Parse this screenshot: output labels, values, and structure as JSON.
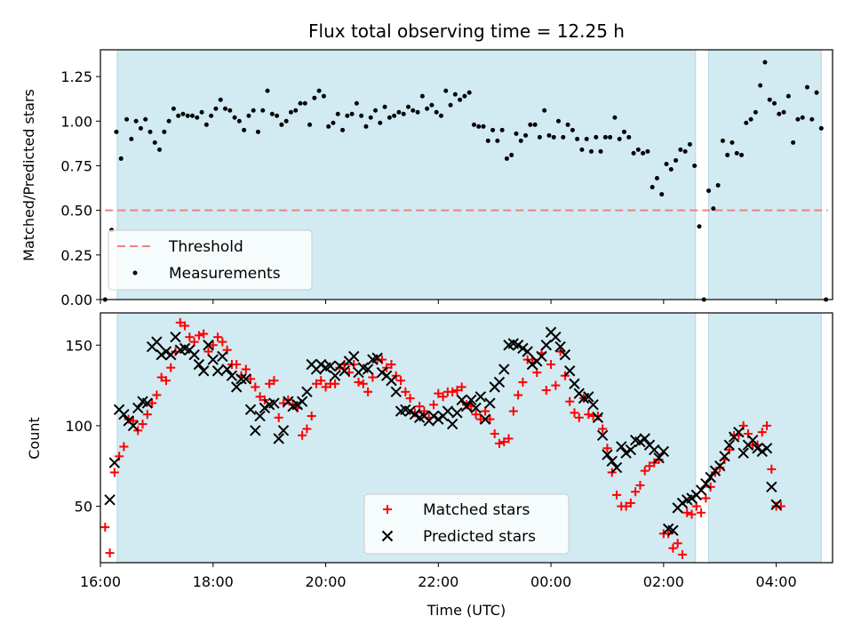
{
  "chart_data": [
    {
      "type": "scatter",
      "title": "Flux total observing time = 12.25 h",
      "xlabel": "",
      "ylabel": "Matched/Predicted stars",
      "xlim": [
        "16:00",
        "05:00"
      ],
      "ylim": [
        0,
        1.4
      ],
      "y_ticks": [
        "0.00",
        "0.25",
        "0.50",
        "0.75",
        "1.00",
        "1.25"
      ],
      "shaded_intervals": [
        [
          "16:18",
          "02:34"
        ],
        [
          "02:48",
          "04:48"
        ]
      ],
      "shade_color": "#add8e6",
      "threshold": {
        "value": 0.5,
        "from": "16:05",
        "to": "04:55",
        "color": "#f08080"
      },
      "legend": {
        "position": "lower-left",
        "entries": [
          "Threshold",
          "Measurements"
        ]
      },
      "series": [
        {
          "name": "Measurements",
          "color": "#000000",
          "points": [
            [
              "16:05",
              0.0
            ],
            [
              "16:12",
              0.39
            ],
            [
              "16:17",
              0.94
            ],
            [
              "16:22",
              0.79
            ],
            [
              "16:28",
              1.01
            ],
            [
              "16:33",
              0.9
            ],
            [
              "16:38",
              1.0
            ],
            [
              "16:43",
              0.96
            ],
            [
              "16:48",
              1.01
            ],
            [
              "16:53",
              0.94
            ],
            [
              "16:58",
              0.88
            ],
            [
              "17:03",
              0.84
            ],
            [
              "17:08",
              0.94
            ],
            [
              "17:13",
              1.0
            ],
            [
              "17:18",
              1.07
            ],
            [
              "17:23",
              1.03
            ],
            [
              "17:28",
              1.04
            ],
            [
              "17:33",
              1.03
            ],
            [
              "17:38",
              1.03
            ],
            [
              "17:43",
              1.02
            ],
            [
              "17:48",
              1.05
            ],
            [
              "17:53",
              0.98
            ],
            [
              "17:58",
              1.03
            ],
            [
              "18:03",
              1.07
            ],
            [
              "18:08",
              1.12
            ],
            [
              "18:13",
              1.07
            ],
            [
              "18:18",
              1.06
            ],
            [
              "18:23",
              1.02
            ],
            [
              "18:28",
              1.0
            ],
            [
              "18:33",
              0.95
            ],
            [
              "18:38",
              1.03
            ],
            [
              "18:43",
              1.06
            ],
            [
              "18:48",
              0.94
            ],
            [
              "18:53",
              1.06
            ],
            [
              "18:58",
              1.17
            ],
            [
              "19:03",
              1.04
            ],
            [
              "19:08",
              1.03
            ],
            [
              "19:13",
              0.98
            ],
            [
              "19:18",
              1.0
            ],
            [
              "19:23",
              1.05
            ],
            [
              "19:28",
              1.06
            ],
            [
              "19:33",
              1.1
            ],
            [
              "19:38",
              1.1
            ],
            [
              "19:43",
              0.98
            ],
            [
              "19:48",
              1.13
            ],
            [
              "19:53",
              1.17
            ],
            [
              "19:58",
              1.14
            ],
            [
              "20:03",
              0.97
            ],
            [
              "20:08",
              0.99
            ],
            [
              "20:13",
              1.04
            ],
            [
              "20:18",
              0.95
            ],
            [
              "20:23",
              1.03
            ],
            [
              "20:28",
              1.04
            ],
            [
              "20:33",
              1.1
            ],
            [
              "20:38",
              1.03
            ],
            [
              "20:43",
              0.97
            ],
            [
              "20:48",
              1.02
            ],
            [
              "20:53",
              1.06
            ],
            [
              "20:58",
              0.99
            ],
            [
              "21:03",
              1.08
            ],
            [
              "21:08",
              1.02
            ],
            [
              "21:13",
              1.03
            ],
            [
              "21:18",
              1.05
            ],
            [
              "21:23",
              1.04
            ],
            [
              "21:28",
              1.08
            ],
            [
              "21:33",
              1.06
            ],
            [
              "21:38",
              1.05
            ],
            [
              "21:43",
              1.14
            ],
            [
              "21:48",
              1.07
            ],
            [
              "21:53",
              1.09
            ],
            [
              "21:58",
              1.05
            ],
            [
              "22:03",
              1.03
            ],
            [
              "22:08",
              1.17
            ],
            [
              "22:13",
              1.09
            ],
            [
              "22:18",
              1.15
            ],
            [
              "22:23",
              1.12
            ],
            [
              "22:28",
              1.14
            ],
            [
              "22:33",
              1.16
            ],
            [
              "22:38",
              0.98
            ],
            [
              "22:43",
              0.97
            ],
            [
              "22:48",
              0.97
            ],
            [
              "22:53",
              0.89
            ],
            [
              "22:58",
              0.95
            ],
            [
              "23:03",
              0.89
            ],
            [
              "23:08",
              0.95
            ],
            [
              "23:13",
              0.79
            ],
            [
              "23:18",
              0.81
            ],
            [
              "23:23",
              0.93
            ],
            [
              "23:28",
              0.89
            ],
            [
              "23:33",
              0.92
            ],
            [
              "23:38",
              0.98
            ],
            [
              "23:43",
              0.98
            ],
            [
              "23:48",
              0.91
            ],
            [
              "23:53",
              1.06
            ],
            [
              "23:58",
              0.92
            ],
            [
              "00:03",
              0.91
            ],
            [
              "00:08",
              1.0
            ],
            [
              "00:13",
              0.91
            ],
            [
              "00:18",
              0.98
            ],
            [
              "00:23",
              0.95
            ],
            [
              "00:28",
              0.9
            ],
            [
              "00:33",
              0.84
            ],
            [
              "00:38",
              0.9
            ],
            [
              "00:43",
              0.83
            ],
            [
              "00:48",
              0.91
            ],
            [
              "00:53",
              0.83
            ],
            [
              "00:58",
              0.91
            ],
            [
              "01:03",
              0.91
            ],
            [
              "01:08",
              1.02
            ],
            [
              "01:13",
              0.9
            ],
            [
              "01:18",
              0.94
            ],
            [
              "01:23",
              0.91
            ],
            [
              "01:28",
              0.82
            ],
            [
              "01:33",
              0.84
            ],
            [
              "01:38",
              0.82
            ],
            [
              "01:43",
              0.83
            ],
            [
              "01:48",
              0.63
            ],
            [
              "01:53",
              0.68
            ],
            [
              "01:58",
              0.59
            ],
            [
              "02:03",
              0.76
            ],
            [
              "02:08",
              0.73
            ],
            [
              "02:13",
              0.78
            ],
            [
              "02:18",
              0.84
            ],
            [
              "02:23",
              0.83
            ],
            [
              "02:28",
              0.87
            ],
            [
              "02:33",
              0.75
            ],
            [
              "02:38",
              0.41
            ],
            [
              "02:43",
              0.0
            ],
            [
              "02:48",
              0.61
            ],
            [
              "02:53",
              0.51
            ],
            [
              "02:58",
              0.64
            ],
            [
              "03:03",
              0.89
            ],
            [
              "03:08",
              0.81
            ],
            [
              "03:13",
              0.88
            ],
            [
              "03:18",
              0.82
            ],
            [
              "03:23",
              0.81
            ],
            [
              "03:28",
              0.99
            ],
            [
              "03:33",
              1.01
            ],
            [
              "03:38",
              1.05
            ],
            [
              "03:43",
              1.2
            ],
            [
              "03:48",
              1.33
            ],
            [
              "03:53",
              1.12
            ],
            [
              "03:58",
              1.1
            ],
            [
              "04:03",
              1.04
            ],
            [
              "04:08",
              1.05
            ],
            [
              "04:13",
              1.14
            ],
            [
              "04:18",
              0.88
            ],
            [
              "04:23",
              1.01
            ],
            [
              "04:28",
              1.02
            ],
            [
              "04:33",
              1.19
            ],
            [
              "04:38",
              1.01
            ],
            [
              "04:43",
              1.16
            ],
            [
              "04:48",
              0.96
            ],
            [
              "04:53",
              0.0
            ]
          ]
        }
      ]
    },
    {
      "type": "scatter",
      "title": "",
      "xlabel": "Time (UTC)",
      "ylabel": "Count",
      "xlim": [
        "16:00",
        "05:00"
      ],
      "ylim": [
        15,
        170
      ],
      "y_ticks": [
        "50",
        "100",
        "150"
      ],
      "x_ticks": [
        "16:00",
        "18:00",
        "20:00",
        "22:00",
        "00:00",
        "02:00",
        "04:00"
      ],
      "shaded_intervals": [
        [
          "16:18",
          "02:34"
        ],
        [
          "02:48",
          "04:48"
        ]
      ],
      "shade_color": "#add8e6",
      "legend": {
        "position": "lower-center",
        "entries": [
          "Matched stars",
          "Predicted stars"
        ]
      },
      "series": [
        {
          "name": "Matched stars",
          "color": "#ff0000",
          "marker": "+",
          "x_start": "16:05",
          "x_step_minutes": 5,
          "values": [
            37,
            21,
            71,
            81,
            87,
            104,
            103,
            97,
            101,
            107,
            114,
            119,
            130,
            128,
            136,
            146,
            164,
            162,
            155,
            152,
            156,
            157,
            146,
            150,
            155,
            152,
            147,
            138,
            138,
            131,
            135,
            129,
            124,
            118,
            116,
            126,
            128,
            105,
            114,
            116,
            113,
            111,
            94,
            98,
            106,
            126,
            128,
            124,
            126,
            126,
            136,
            138,
            133,
            138,
            127,
            126,
            121,
            130,
            141,
            141,
            136,
            138,
            131,
            128,
            121,
            117,
            108,
            112,
            109,
            105,
            113,
            120,
            118,
            121,
            121,
            122,
            124,
            113,
            112,
            107,
            104,
            109,
            104,
            95,
            89,
            90,
            92,
            109,
            119,
            127,
            141,
            141,
            133,
            145,
            122,
            138,
            125,
            146,
            131,
            115,
            108,
            105,
            117,
            107,
            106,
            106,
            98,
            86,
            71,
            57,
            50,
            50,
            52,
            59,
            63,
            72,
            75,
            77,
            79,
            33,
            33,
            24,
            27,
            20,
            46,
            45,
            50,
            46,
            55,
            62,
            71,
            74,
            79,
            85,
            94,
            94,
            100,
            95,
            88,
            88,
            96,
            100,
            73,
            50,
            50
          ]
        },
        {
          "name": "Predicted stars",
          "color": "#000000",
          "marker": "x",
          "x_start": "16:10",
          "x_step_minutes": 5,
          "values": [
            54,
            77,
            110,
            107,
            103,
            100,
            111,
            115,
            114,
            149,
            152,
            144,
            146,
            144,
            155,
            147,
            148,
            147,
            144,
            138,
            134,
            150,
            141,
            134,
            143,
            135,
            131,
            124,
            129,
            129,
            110,
            97,
            106,
            111,
            113,
            114,
            92,
            97,
            115,
            112,
            113,
            115,
            121,
            138,
            135,
            138,
            136,
            137,
            131,
            137,
            134,
            140,
            143,
            133,
            136,
            135,
            141,
            142,
            133,
            131,
            128,
            121,
            109,
            110,
            109,
            107,
            105,
            106,
            103,
            106,
            104,
            106,
            109,
            101,
            108,
            116,
            112,
            116,
            111,
            118,
            104,
            114,
            124,
            127,
            135,
            150,
            151,
            150,
            148,
            146,
            138,
            140,
            143,
            150,
            158,
            155,
            149,
            144,
            134,
            126,
            120,
            117,
            118,
            113,
            105,
            94,
            82,
            78,
            74,
            87,
            83,
            85,
            91,
            90,
            92,
            88,
            85,
            80,
            84,
            36,
            35,
            49,
            52,
            54,
            55,
            57,
            60,
            64,
            68,
            72,
            75,
            81,
            88,
            93,
            96,
            83,
            88,
            91,
            86,
            84,
            86,
            62,
            51
          ]
        }
      ]
    }
  ]
}
